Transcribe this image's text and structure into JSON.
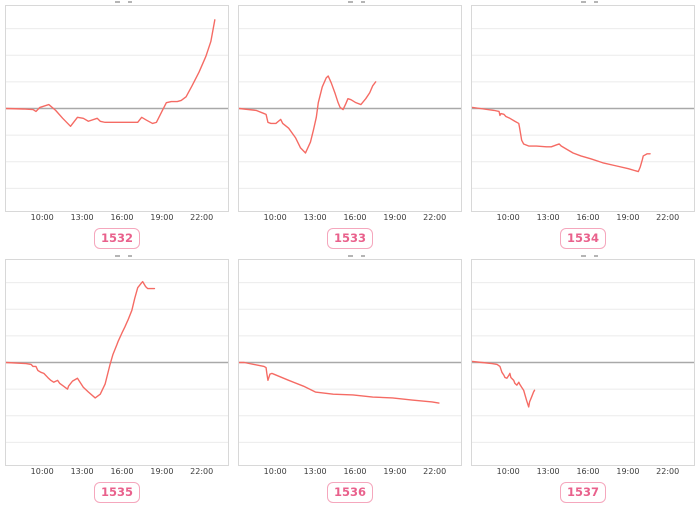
{
  "chart_meta": {
    "type": "line-small-multiples",
    "grid_on": true,
    "line_color": "#f56b64",
    "grid_color": "#ebebeb",
    "zero_line_color": "#a9a9a9",
    "border_color": "#d8d8d8",
    "badge_border_color": "#f5a7bd",
    "badge_text_color": "#e9618c",
    "tick_text_color": "#3d3d3d",
    "x_domain_hours": [
      7.2,
      24.05
    ],
    "y_domain_units": [
      -3.85,
      3.85
    ],
    "gridline_values": [
      -3,
      -2,
      -1,
      1,
      2,
      3
    ],
    "x_tick_hours": [
      10,
      13,
      16,
      19,
      22
    ]
  },
  "chart_data": [
    {
      "type": "line",
      "badge": "1532",
      "x_tick_labels": [
        "10:00",
        "13:00",
        "16:00",
        "19:00",
        "22:00"
      ],
      "points": [
        [
          7.22,
          0
        ],
        [
          8.5,
          -0.02
        ],
        [
          9.25,
          -0.04
        ],
        [
          9.47,
          -0.11
        ],
        [
          9.77,
          0.04
        ],
        [
          10.45,
          0.15
        ],
        [
          10.97,
          -0.07
        ],
        [
          11.5,
          -0.37
        ],
        [
          12.1,
          -0.67
        ],
        [
          12.62,
          -0.33
        ],
        [
          13.07,
          -0.37
        ],
        [
          13.45,
          -0.48
        ],
        [
          14.12,
          -0.37
        ],
        [
          14.35,
          -0.48
        ],
        [
          14.72,
          -0.52
        ],
        [
          17.2,
          -0.52
        ],
        [
          17.5,
          -0.33
        ],
        [
          17.87,
          -0.44
        ],
        [
          18.32,
          -0.56
        ],
        [
          18.62,
          -0.52
        ],
        [
          19.07,
          -0.07
        ],
        [
          19.37,
          0.22
        ],
        [
          19.75,
          0.26
        ],
        [
          20.2,
          0.26
        ],
        [
          20.5,
          0.3
        ],
        [
          20.87,
          0.44
        ],
        [
          21.32,
          0.85
        ],
        [
          21.85,
          1.37
        ],
        [
          22.37,
          1.96
        ],
        [
          22.75,
          2.52
        ],
        [
          23.05,
          3.33
        ]
      ]
    },
    {
      "type": "line",
      "badge": "1533",
      "x_tick_labels": [
        "10:00",
        "13:00",
        "16:00",
        "19:00",
        "22:00"
      ],
      "points": [
        [
          7.22,
          0
        ],
        [
          8.5,
          -0.07
        ],
        [
          9.1,
          -0.19
        ],
        [
          9.25,
          -0.22
        ],
        [
          9.4,
          -0.52
        ],
        [
          9.62,
          -0.56
        ],
        [
          10,
          -0.56
        ],
        [
          10.37,
          -0.41
        ],
        [
          10.52,
          -0.56
        ],
        [
          10.97,
          -0.74
        ],
        [
          11.5,
          -1.11
        ],
        [
          11.87,
          -1.48
        ],
        [
          12.25,
          -1.67
        ],
        [
          12.62,
          -1.26
        ],
        [
          12.85,
          -0.81
        ],
        [
          13.07,
          -0.33
        ],
        [
          13.22,
          0.22
        ],
        [
          13.52,
          0.81
        ],
        [
          13.82,
          1.15
        ],
        [
          13.97,
          1.22
        ],
        [
          14.2,
          0.96
        ],
        [
          14.5,
          0.56
        ],
        [
          14.72,
          0.22
        ],
        [
          14.87,
          0.04
        ],
        [
          15.1,
          -0.04
        ],
        [
          15.32,
          0.19
        ],
        [
          15.47,
          0.37
        ],
        [
          15.7,
          0.33
        ],
        [
          16.07,
          0.22
        ],
        [
          16.45,
          0.15
        ],
        [
          16.82,
          0.37
        ],
        [
          17.12,
          0.59
        ],
        [
          17.35,
          0.85
        ],
        [
          17.57,
          1.0
        ]
      ]
    },
    {
      "type": "line",
      "badge": "1534",
      "x_tick_labels": [
        "10:00",
        "13:00",
        "16:00",
        "19:00",
        "22:00"
      ],
      "points": [
        [
          7.22,
          0.04
        ],
        [
          7.82,
          0
        ],
        [
          8.87,
          -0.07
        ],
        [
          9.25,
          -0.11
        ],
        [
          9.32,
          -0.26
        ],
        [
          9.4,
          -0.19
        ],
        [
          9.62,
          -0.22
        ],
        [
          9.77,
          -0.3
        ],
        [
          10.07,
          -0.37
        ],
        [
          10.45,
          -0.48
        ],
        [
          10.75,
          -0.56
        ],
        [
          10.82,
          -0.74
        ],
        [
          10.97,
          -1.19
        ],
        [
          11.12,
          -1.33
        ],
        [
          11.5,
          -1.41
        ],
        [
          12.1,
          -1.41
        ],
        [
          12.85,
          -1.44
        ],
        [
          13.22,
          -1.44
        ],
        [
          13.6,
          -1.37
        ],
        [
          13.82,
          -1.33
        ],
        [
          13.97,
          -1.41
        ],
        [
          14.35,
          -1.52
        ],
        [
          14.87,
          -1.67
        ],
        [
          15.47,
          -1.78
        ],
        [
          16.22,
          -1.89
        ],
        [
          17.12,
          -2.04
        ],
        [
          18.1,
          -2.15
        ],
        [
          19.07,
          -2.26
        ],
        [
          19.82,
          -2.37
        ],
        [
          19.97,
          -2.19
        ],
        [
          20.12,
          -1.93
        ],
        [
          20.2,
          -1.78
        ],
        [
          20.5,
          -1.7
        ],
        [
          20.72,
          -1.7
        ]
      ]
    },
    {
      "type": "line",
      "badge": "1535",
      "x_tick_labels": [
        "10:00",
        "13:00",
        "16:00",
        "19:00",
        "22:00"
      ],
      "points": [
        [
          7.22,
          0
        ],
        [
          8.72,
          -0.04
        ],
        [
          9.1,
          -0.07
        ],
        [
          9.25,
          -0.15
        ],
        [
          9.47,
          -0.15
        ],
        [
          9.62,
          -0.3
        ],
        [
          9.85,
          -0.37
        ],
        [
          10.07,
          -0.41
        ],
        [
          10.37,
          -0.56
        ],
        [
          10.6,
          -0.67
        ],
        [
          10.82,
          -0.74
        ],
        [
          11.12,
          -0.67
        ],
        [
          11.27,
          -0.78
        ],
        [
          11.57,
          -0.89
        ],
        [
          11.87,
          -1.0
        ],
        [
          11.95,
          -0.89
        ],
        [
          12.25,
          -0.7
        ],
        [
          12.62,
          -0.59
        ],
        [
          13.07,
          -0.93
        ],
        [
          13.45,
          -1.11
        ],
        [
          13.97,
          -1.33
        ],
        [
          14.35,
          -1.19
        ],
        [
          14.72,
          -0.81
        ],
        [
          15.1,
          -0.07
        ],
        [
          15.32,
          0.3
        ],
        [
          15.62,
          0.67
        ],
        [
          15.7,
          0.78
        ],
        [
          16,
          1.11
        ],
        [
          16.22,
          1.33
        ],
        [
          16.45,
          1.59
        ],
        [
          16.75,
          1.96
        ],
        [
          16.97,
          2.41
        ],
        [
          17.2,
          2.81
        ],
        [
          17.5,
          3.0
        ],
        [
          17.57,
          3.04
        ],
        [
          17.8,
          2.85
        ],
        [
          17.95,
          2.78
        ],
        [
          18.47,
          2.78
        ]
      ]
    },
    {
      "type": "line",
      "badge": "1536",
      "x_tick_labels": [
        "10:00",
        "13:00",
        "16:00",
        "19:00",
        "22:00"
      ],
      "points": [
        [
          7.22,
          0
        ],
        [
          7.6,
          0
        ],
        [
          8.72,
          -0.11
        ],
        [
          9.1,
          -0.15
        ],
        [
          9.25,
          -0.19
        ],
        [
          9.32,
          -0.44
        ],
        [
          9.4,
          -0.67
        ],
        [
          9.55,
          -0.44
        ],
        [
          9.7,
          -0.41
        ],
        [
          9.85,
          -0.44
        ],
        [
          10.97,
          -0.67
        ],
        [
          12.1,
          -0.89
        ],
        [
          13,
          -1.11
        ],
        [
          14.35,
          -1.19
        ],
        [
          15.85,
          -1.22
        ],
        [
          17.35,
          -1.3
        ],
        [
          18.85,
          -1.33
        ],
        [
          20.35,
          -1.41
        ],
        [
          21.85,
          -1.48
        ],
        [
          22.37,
          -1.52
        ]
      ]
    },
    {
      "type": "line",
      "badge": "1537",
      "x_tick_labels": [
        "10:00",
        "13:00",
        "16:00",
        "19:00",
        "22:00"
      ],
      "points": [
        [
          7.22,
          0.04
        ],
        [
          7.97,
          0
        ],
        [
          8.72,
          -0.04
        ],
        [
          9.1,
          -0.07
        ],
        [
          9.32,
          -0.15
        ],
        [
          9.47,
          -0.37
        ],
        [
          9.62,
          -0.48
        ],
        [
          9.7,
          -0.56
        ],
        [
          9.85,
          -0.59
        ],
        [
          10,
          -0.48
        ],
        [
          10.07,
          -0.41
        ],
        [
          10.15,
          -0.56
        ],
        [
          10.37,
          -0.67
        ],
        [
          10.45,
          -0.78
        ],
        [
          10.6,
          -0.85
        ],
        [
          10.75,
          -0.74
        ],
        [
          10.82,
          -0.81
        ],
        [
          10.97,
          -0.93
        ],
        [
          11.12,
          -1.04
        ],
        [
          11.35,
          -1.44
        ],
        [
          11.5,
          -1.67
        ],
        [
          11.57,
          -1.48
        ],
        [
          11.72,
          -1.3
        ],
        [
          11.87,
          -1.11
        ],
        [
          11.95,
          -1.04
        ]
      ]
    }
  ]
}
